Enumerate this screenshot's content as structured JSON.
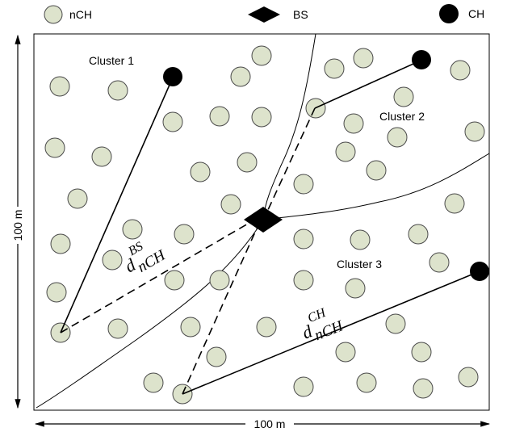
{
  "legend": {
    "ordinary_node": "nCH",
    "base_station": "BS",
    "cluster_head": "CH"
  },
  "clusters": {
    "c1": "Cluster 1",
    "c2": "Cluster 2",
    "c3": "Cluster 3"
  },
  "dimensions": {
    "height_label": "100 m",
    "width_label": "100 m"
  },
  "distances": {
    "to_bs": {
      "base": "d",
      "sub": "nCH",
      "sup": "BS"
    },
    "to_ch": {
      "base": "d",
      "sub": "nCH",
      "sup": "CH"
    }
  },
  "colors": {
    "node_fill": "#dde3cc",
    "node_stroke": "#4a4a4a",
    "head_fill": "#000000",
    "line": "#000000"
  }
}
